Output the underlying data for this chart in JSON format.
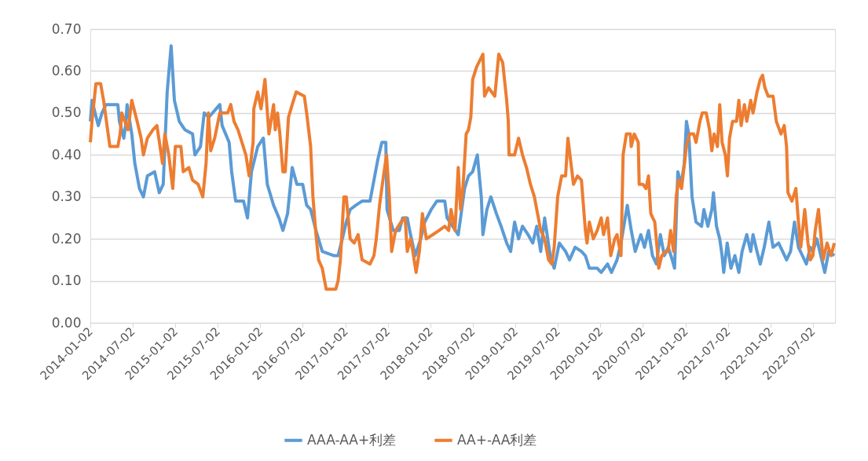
{
  "chart_data": {
    "type": "line",
    "xlim": [
      "2014-01-02",
      "2022-10-05"
    ],
    "xticks": [
      "2014-01-02",
      "2014-07-02",
      "2015-01-02",
      "2015-07-02",
      "2016-01-02",
      "2016-07-02",
      "2017-01-02",
      "2017-07-02",
      "2018-01-02",
      "2018-07-02",
      "2019-01-02",
      "2019-07-02",
      "2020-01-02",
      "2020-07-02",
      "2021-01-02",
      "2021-07-02",
      "2022-01-02",
      "2022-07-02"
    ],
    "ylim": [
      0,
      0.7
    ],
    "yticks": [
      {
        "value": 0,
        "label": "0.00"
      },
      {
        "value": 0.1,
        "label": "0.10"
      },
      {
        "value": 0.2,
        "label": "0.20"
      },
      {
        "value": 0.3,
        "label": "0.30"
      },
      {
        "value": 0.4,
        "label": "0.40"
      },
      {
        "value": 0.5,
        "label": "0.50"
      },
      {
        "value": 0.6,
        "label": "0.60"
      },
      {
        "value": 0.7,
        "label": "0.70"
      }
    ],
    "grid": "y",
    "legend": "bottom",
    "marker": "none",
    "line_style": "solid",
    "series": [
      {
        "name": "AAA-AA+利差",
        "color": "#5b9bd5",
        "x": [
          "2014-01-02",
          "2014-01-09",
          "2014-02-05",
          "2014-02-21",
          "2014-03-10",
          "2014-04-30",
          "2014-05-07",
          "2014-05-26",
          "2014-06-02",
          "2014-06-09",
          "2014-06-29",
          "2014-07-12",
          "2014-08-01",
          "2014-08-18",
          "2014-09-04",
          "2014-10-05",
          "2014-10-25",
          "2014-11-11",
          "2014-11-28",
          "2014-12-15",
          "2014-12-29",
          "2015-01-19",
          "2015-02-12",
          "2015-03-17",
          "2015-03-27",
          "2015-04-20",
          "2015-05-06",
          "2015-05-26",
          "2015-07-12",
          "2015-07-22",
          "2015-08-21",
          "2015-09-01",
          "2015-09-18",
          "2015-10-22",
          "2015-11-08",
          "2015-11-25",
          "2015-12-22",
          "2016-01-15",
          "2016-02-01",
          "2016-02-28",
          "2016-03-22",
          "2016-04-08",
          "2016-04-28",
          "2016-05-18",
          "2016-06-07",
          "2016-07-02",
          "2016-07-19",
          "2016-08-05",
          "2016-08-28",
          "2016-09-24",
          "2016-11-14",
          "2016-12-01",
          "2016-12-19",
          "2017-01-05",
          "2017-01-22",
          "2017-02-15",
          "2017-03-14",
          "2017-04-17",
          "2017-05-04",
          "2017-05-21",
          "2017-06-07",
          "2017-06-24",
          "2017-06-29",
          "2017-07-26",
          "2017-08-21",
          "2017-09-04",
          "2017-09-24",
          "2017-10-08",
          "2017-10-28",
          "2017-11-21",
          "2017-12-08",
          "2018-01-05",
          "2018-01-29",
          "2018-03-04",
          "2018-03-14",
          "2018-04-07",
          "2018-05-01",
          "2018-05-11",
          "2018-05-28",
          "2018-06-14",
          "2018-07-02",
          "2018-07-22",
          "2018-08-08",
          "2018-08-15",
          "2018-09-01",
          "2018-09-18",
          "2018-10-12",
          "2018-11-01",
          "2018-11-25",
          "2018-12-12",
          "2018-12-29",
          "2019-01-15",
          "2019-02-01",
          "2019-02-25",
          "2019-03-17",
          "2019-04-03",
          "2019-04-20",
          "2019-05-07",
          "2019-05-31",
          "2019-06-17",
          "2019-07-09",
          "2019-08-05",
          "2019-08-22",
          "2019-09-15",
          "2019-10-12",
          "2019-10-29",
          "2019-11-15",
          "2019-12-19",
          "2020-01-05",
          "2020-02-01",
          "2020-02-18",
          "2020-03-13",
          "2020-03-30",
          "2020-04-26",
          "2020-05-13",
          "2020-05-30",
          "2020-06-23",
          "2020-07-09",
          "2020-07-26",
          "2020-08-12",
          "2020-08-29",
          "2020-09-15",
          "2020-10-02",
          "2020-10-19",
          "2020-11-05",
          "2020-11-15",
          "2020-11-29",
          "2020-12-13",
          "2020-12-27",
          "2021-01-05",
          "2021-01-15",
          "2021-01-29",
          "2021-02-15",
          "2021-03-11",
          "2021-03-21",
          "2021-04-07",
          "2021-04-24",
          "2021-05-01",
          "2021-05-14",
          "2021-05-28",
          "2021-06-07",
          "2021-06-14",
          "2021-06-29",
          "2021-07-15",
          "2021-08-01",
          "2021-08-18",
          "2021-09-01",
          "2021-09-21",
          "2021-10-08",
          "2021-10-18",
          "2021-11-04",
          "2021-11-18",
          "2021-12-05",
          "2021-12-25",
          "2022-01-12",
          "2022-02-05",
          "2022-02-22",
          "2022-03-11",
          "2022-03-28",
          "2022-04-14",
          "2022-05-01",
          "2022-05-18",
          "2022-06-04",
          "2022-06-21",
          "2022-07-02",
          "2022-07-19",
          "2022-08-05",
          "2022-08-22",
          "2022-09-08",
          "2022-10-02"
        ],
        "values": [
          0.48,
          0.53,
          0.47,
          0.5,
          0.52,
          0.52,
          0.48,
          0.44,
          0.47,
          0.52,
          0.45,
          0.38,
          0.32,
          0.3,
          0.35,
          0.36,
          0.31,
          0.33,
          0.55,
          0.66,
          0.53,
          0.48,
          0.46,
          0.45,
          0.4,
          0.42,
          0.5,
          0.49,
          0.52,
          0.47,
          0.43,
          0.36,
          0.29,
          0.29,
          0.25,
          0.36,
          0.42,
          0.44,
          0.33,
          0.28,
          0.25,
          0.22,
          0.26,
          0.37,
          0.33,
          0.33,
          0.28,
          0.27,
          0.22,
          0.17,
          0.16,
          0.16,
          0.2,
          0.24,
          0.27,
          0.28,
          0.29,
          0.29,
          0.34,
          0.39,
          0.43,
          0.43,
          0.27,
          0.22,
          0.22,
          0.25,
          0.25,
          0.21,
          0.16,
          0.2,
          0.24,
          0.27,
          0.29,
          0.29,
          0.25,
          0.23,
          0.21,
          0.25,
          0.32,
          0.35,
          0.36,
          0.4,
          0.3,
          0.21,
          0.27,
          0.3,
          0.26,
          0.23,
          0.19,
          0.17,
          0.24,
          0.2,
          0.23,
          0.21,
          0.19,
          0.23,
          0.17,
          0.25,
          0.16,
          0.13,
          0.19,
          0.17,
          0.15,
          0.18,
          0.17,
          0.16,
          0.13,
          0.13,
          0.12,
          0.14,
          0.12,
          0.15,
          0.19,
          0.28,
          0.22,
          0.17,
          0.21,
          0.18,
          0.22,
          0.16,
          0.14,
          0.21,
          0.16,
          0.18,
          0.15,
          0.13,
          0.36,
          0.33,
          0.38,
          0.48,
          0.45,
          0.3,
          0.24,
          0.23,
          0.27,
          0.23,
          0.27,
          0.31,
          0.23,
          0.2,
          0.16,
          0.12,
          0.19,
          0.13,
          0.16,
          0.12,
          0.17,
          0.21,
          0.17,
          0.21,
          0.17,
          0.14,
          0.18,
          0.24,
          0.18,
          0.19,
          0.17,
          0.15,
          0.17,
          0.24,
          0.18,
          0.16,
          0.14,
          0.18,
          0.17,
          0.2,
          0.16,
          0.12,
          0.17,
          0.16
        ]
      },
      {
        "name": "AA+-AA利差",
        "color": "#ed7d31",
        "x": [
          "2014-01-02",
          "2014-01-09",
          "2014-01-26",
          "2014-02-15",
          "2014-02-28",
          "2014-03-17",
          "2014-03-27",
          "2014-04-30",
          "2014-05-10",
          "2014-05-17",
          "2014-06-13",
          "2014-06-29",
          "2014-07-22",
          "2014-08-08",
          "2014-08-18",
          "2014-09-04",
          "2014-09-28",
          "2014-10-15",
          "2014-11-08",
          "2014-11-18",
          "2014-12-05",
          "2014-12-22",
          "2015-01-02",
          "2015-01-26",
          "2015-02-05",
          "2015-03-01",
          "2015-03-17",
          "2015-04-10",
          "2015-04-30",
          "2015-05-14",
          "2015-05-24",
          "2015-06-03",
          "2015-06-20",
          "2015-07-12",
          "2015-08-15",
          "2015-08-28",
          "2015-09-11",
          "2015-09-28",
          "2015-10-15",
          "2015-11-01",
          "2015-11-15",
          "2015-12-02",
          "2015-12-05",
          "2015-12-22",
          "2016-01-05",
          "2016-01-22",
          "2016-02-08",
          "2016-02-28",
          "2016-03-06",
          "2016-03-16",
          "2016-03-26",
          "2016-04-08",
          "2016-04-18",
          "2016-05-02",
          "2016-05-18",
          "2016-06-04",
          "2016-07-09",
          "2016-07-19",
          "2016-08-05",
          "2016-08-15",
          "2016-08-28",
          "2016-09-08",
          "2016-09-24",
          "2016-10-11",
          "2016-11-21",
          "2016-12-01",
          "2016-12-11",
          "2016-12-26",
          "2017-01-05",
          "2017-01-22",
          "2017-02-08",
          "2017-02-25",
          "2017-03-14",
          "2017-04-17",
          "2017-05-04",
          "2017-05-14",
          "2017-05-28",
          "2017-06-14",
          "2017-06-27",
          "2017-07-09",
          "2017-07-19",
          "2017-08-05",
          "2017-08-28",
          "2017-09-15",
          "2017-09-24",
          "2017-10-08",
          "2017-10-18",
          "2017-11-01",
          "2017-11-15",
          "2017-11-28",
          "2017-12-15",
          "2018-01-12",
          "2018-02-08",
          "2018-03-04",
          "2018-03-21",
          "2018-03-31",
          "2018-04-17",
          "2018-05-01",
          "2018-05-11",
          "2018-05-21",
          "2018-06-04",
          "2018-06-14",
          "2018-06-24",
          "2018-07-02",
          "2018-07-19",
          "2018-08-15",
          "2018-08-22",
          "2018-09-08",
          "2018-10-05",
          "2018-10-22",
          "2018-11-08",
          "2018-11-25",
          "2018-12-02",
          "2018-12-05",
          "2018-12-29",
          "2019-01-15",
          "2019-02-01",
          "2019-02-18",
          "2019-03-07",
          "2019-03-24",
          "2019-04-10",
          "2019-04-20",
          "2019-05-07",
          "2019-05-24",
          "2019-06-07",
          "2019-06-17",
          "2019-07-02",
          "2019-07-19",
          "2019-08-05",
          "2019-08-15",
          "2019-09-08",
          "2019-09-25",
          "2019-10-12",
          "2019-10-29",
          "2019-11-05",
          "2019-11-15",
          "2019-12-02",
          "2019-12-19",
          "2020-01-05",
          "2020-01-15",
          "2020-02-01",
          "2020-02-15",
          "2020-03-03",
          "2020-03-13",
          "2020-03-30",
          "2020-04-08",
          "2020-04-22",
          "2020-05-09",
          "2020-05-13",
          "2020-05-26",
          "2020-06-12",
          "2020-06-16",
          "2020-07-02",
          "2020-07-15",
          "2020-07-26",
          "2020-08-05",
          "2020-08-22",
          "2020-09-04",
          "2020-09-08",
          "2020-09-21",
          "2020-10-08",
          "2020-10-18",
          "2020-10-29",
          "2020-11-11",
          "2020-11-22",
          "2020-12-02",
          "2020-12-15",
          "2021-01-05",
          "2021-01-19",
          "2021-02-05",
          "2021-02-15",
          "2021-03-04",
          "2021-03-14",
          "2021-03-31",
          "2021-04-14",
          "2021-04-24",
          "2021-05-04",
          "2021-05-18",
          "2021-05-28",
          "2021-06-07",
          "2021-06-21",
          "2021-06-30",
          "2021-07-09",
          "2021-07-22",
          "2021-08-08",
          "2021-08-18",
          "2021-08-28",
          "2021-09-11",
          "2021-09-21",
          "2021-10-08",
          "2021-10-18",
          "2021-11-04",
          "2021-11-18",
          "2021-11-28",
          "2021-12-08",
          "2021-12-22",
          "2022-01-12",
          "2022-01-26",
          "2022-02-15",
          "2022-03-01",
          "2022-03-11",
          "2022-03-17",
          "2022-04-03",
          "2022-04-20",
          "2022-05-01",
          "2022-05-11",
          "2022-05-28",
          "2022-06-11",
          "2022-06-21",
          "2022-07-02",
          "2022-07-12",
          "2022-07-26",
          "2022-08-05",
          "2022-08-15",
          "2022-09-01",
          "2022-09-18",
          "2022-10-02"
        ],
        "values": [
          0.43,
          0.48,
          0.57,
          0.57,
          0.53,
          0.46,
          0.42,
          0.42,
          0.45,
          0.5,
          0.46,
          0.53,
          0.48,
          0.44,
          0.4,
          0.44,
          0.46,
          0.47,
          0.38,
          0.45,
          0.4,
          0.32,
          0.42,
          0.42,
          0.36,
          0.37,
          0.34,
          0.33,
          0.3,
          0.38,
          0.5,
          0.41,
          0.44,
          0.5,
          0.5,
          0.52,
          0.48,
          0.46,
          0.43,
          0.4,
          0.35,
          0.43,
          0.51,
          0.55,
          0.51,
          0.58,
          0.45,
          0.52,
          0.46,
          0.5,
          0.45,
          0.36,
          0.36,
          0.49,
          0.52,
          0.55,
          0.54,
          0.5,
          0.42,
          0.3,
          0.21,
          0.15,
          0.13,
          0.08,
          0.08,
          0.1,
          0.15,
          0.3,
          0.3,
          0.2,
          0.19,
          0.21,
          0.15,
          0.14,
          0.16,
          0.2,
          0.28,
          0.35,
          0.4,
          0.3,
          0.17,
          0.22,
          0.24,
          0.25,
          0.17,
          0.2,
          0.17,
          0.12,
          0.17,
          0.26,
          0.2,
          0.21,
          0.22,
          0.23,
          0.22,
          0.27,
          0.22,
          0.37,
          0.27,
          0.32,
          0.45,
          0.46,
          0.49,
          0.58,
          0.61,
          0.64,
          0.54,
          0.56,
          0.54,
          0.64,
          0.62,
          0.53,
          0.48,
          0.4,
          0.4,
          0.44,
          0.4,
          0.37,
          0.33,
          0.3,
          0.25,
          0.22,
          0.2,
          0.15,
          0.14,
          0.18,
          0.3,
          0.35,
          0.35,
          0.44,
          0.33,
          0.35,
          0.34,
          0.22,
          0.19,
          0.24,
          0.2,
          0.22,
          0.25,
          0.21,
          0.25,
          0.16,
          0.2,
          0.21,
          0.16,
          0.4,
          0.45,
          0.45,
          0.42,
          0.45,
          0.43,
          0.33,
          0.33,
          0.32,
          0.35,
          0.26,
          0.24,
          0.16,
          0.13,
          0.16,
          0.17,
          0.17,
          0.22,
          0.17,
          0.3,
          0.34,
          0.32,
          0.42,
          0.45,
          0.45,
          0.43,
          0.48,
          0.5,
          0.5,
          0.46,
          0.41,
          0.45,
          0.42,
          0.52,
          0.43,
          0.4,
          0.35,
          0.44,
          0.48,
          0.48,
          0.53,
          0.47,
          0.52,
          0.48,
          0.53,
          0.5,
          0.55,
          0.58,
          0.59,
          0.56,
          0.54,
          0.54,
          0.48,
          0.45,
          0.47,
          0.42,
          0.31,
          0.29,
          0.32,
          0.24,
          0.18,
          0.27,
          0.19,
          0.15,
          0.16,
          0.22,
          0.27,
          0.21,
          0.15,
          0.19,
          0.16,
          0.19
        ]
      }
    ]
  }
}
